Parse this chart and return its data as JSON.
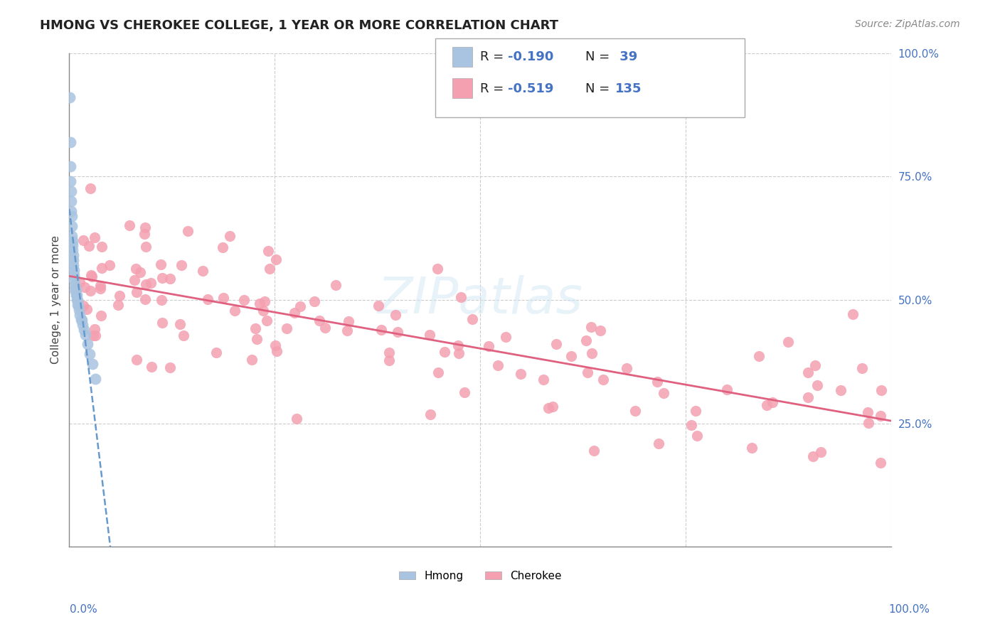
{
  "title": "HMONG VS CHEROKEE COLLEGE, 1 YEAR OR MORE CORRELATION CHART",
  "source": "Source: ZipAtlas.com",
  "ylabel": "College, 1 year or more",
  "legend_blue_R": "-0.190",
  "legend_blue_N": " 39",
  "legend_pink_R": "-0.519",
  "legend_pink_N": "135",
  "hmong_color": "#a8c4e0",
  "cherokee_color": "#f4a0b0",
  "hmong_line_color": "#6699cc",
  "cherokee_line_color": "#e06080",
  "background_color": "#ffffff",
  "grid_color": "#cccccc",
  "watermark": "ZIPatlas"
}
